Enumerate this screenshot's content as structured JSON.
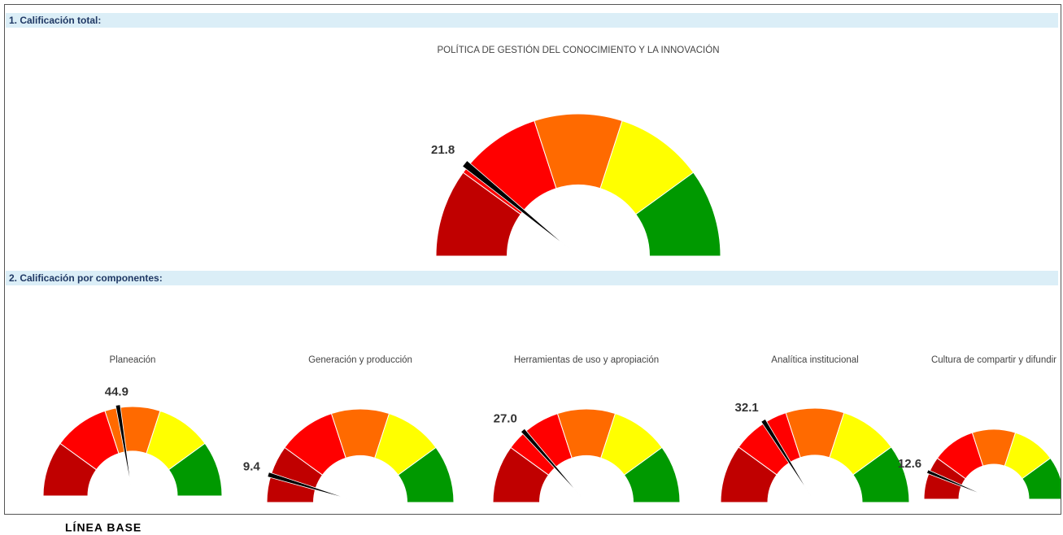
{
  "sections": [
    "1. Calificación total:",
    "2. Calificación por componentes:"
  ],
  "footer": "LÍNEA BASE",
  "chart_data": [
    {
      "type": "gauge",
      "title": "POLÍTICA DE GESTIÓN DEL CONOCIMIENTO Y LA INNOVACIÓN",
      "value": 21.8,
      "ylim": [
        0,
        100
      ],
      "bands": [
        {
          "from": 0,
          "to": 20,
          "color": "#c00000"
        },
        {
          "from": 20,
          "to": 40,
          "color": "#ff0000"
        },
        {
          "from": 40,
          "to": 60,
          "color": "#ff6a00"
        },
        {
          "from": 60,
          "to": 80,
          "color": "#ffff00"
        },
        {
          "from": 80,
          "to": 100,
          "color": "#009900"
        }
      ]
    },
    {
      "type": "gauge",
      "title": "Planeación",
      "value": 44.9,
      "ylim": [
        0,
        100
      ],
      "bands": [
        {
          "from": 0,
          "to": 20,
          "color": "#c00000"
        },
        {
          "from": 20,
          "to": 40,
          "color": "#ff0000"
        },
        {
          "from": 40,
          "to": 60,
          "color": "#ff6a00"
        },
        {
          "from": 60,
          "to": 80,
          "color": "#ffff00"
        },
        {
          "from": 80,
          "to": 100,
          "color": "#009900"
        }
      ]
    },
    {
      "type": "gauge",
      "title": "Generación y producción",
      "value": 9.4,
      "ylim": [
        0,
        100
      ],
      "bands": [
        {
          "from": 0,
          "to": 20,
          "color": "#c00000"
        },
        {
          "from": 20,
          "to": 40,
          "color": "#ff0000"
        },
        {
          "from": 40,
          "to": 60,
          "color": "#ff6a00"
        },
        {
          "from": 60,
          "to": 80,
          "color": "#ffff00"
        },
        {
          "from": 80,
          "to": 100,
          "color": "#009900"
        }
      ]
    },
    {
      "type": "gauge",
      "title": "Herramientas de uso y apropiación",
      "value": 27,
      "value_label": "27.0",
      "ylim": [
        0,
        100
      ],
      "bands": [
        {
          "from": 0,
          "to": 20,
          "color": "#c00000"
        },
        {
          "from": 20,
          "to": 40,
          "color": "#ff0000"
        },
        {
          "from": 40,
          "to": 60,
          "color": "#ff6a00"
        },
        {
          "from": 60,
          "to": 80,
          "color": "#ffff00"
        },
        {
          "from": 80,
          "to": 100,
          "color": "#009900"
        }
      ]
    },
    {
      "type": "gauge",
      "title": "Analítica institucional",
      "value": 32.1,
      "ylim": [
        0,
        100
      ],
      "bands": [
        {
          "from": 0,
          "to": 20,
          "color": "#c00000"
        },
        {
          "from": 20,
          "to": 40,
          "color": "#ff0000"
        },
        {
          "from": 40,
          "to": 60,
          "color": "#ff6a00"
        },
        {
          "from": 60,
          "to": 80,
          "color": "#ffff00"
        },
        {
          "from": 80,
          "to": 100,
          "color": "#009900"
        }
      ]
    },
    {
      "type": "gauge",
      "title": "Cultura de compartir y difundir",
      "value": 12.6,
      "ylim": [
        0,
        100
      ],
      "bands": [
        {
          "from": 0,
          "to": 20,
          "color": "#c00000"
        },
        {
          "from": 20,
          "to": 40,
          "color": "#ff0000"
        },
        {
          "from": 40,
          "to": 60,
          "color": "#ff6a00"
        },
        {
          "from": 60,
          "to": 80,
          "color": "#ffff00"
        },
        {
          "from": 80,
          "to": 100,
          "color": "#009900"
        }
      ]
    }
  ]
}
